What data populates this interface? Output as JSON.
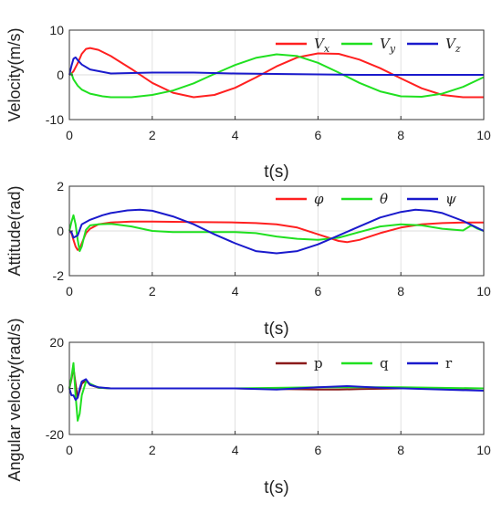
{
  "chart_data": [
    {
      "type": "line",
      "xlabel": "t(s)",
      "ylabel": "Velocity(m/s)",
      "xlim": [
        0,
        10
      ],
      "ylim": [
        -10,
        10
      ],
      "xticks": [
        0,
        2,
        4,
        6,
        8,
        10
      ],
      "yticks": [
        -10,
        0,
        10
      ],
      "grid": "x",
      "legend": "top-right",
      "series": [
        {
          "name": "Vx",
          "label_main": "V",
          "label_sub": "x",
          "color": "#ff2020",
          "x": [
            0,
            0.05,
            0.1,
            0.2,
            0.3,
            0.4,
            0.5,
            0.7,
            1.0,
            1.5,
            2.0,
            2.5,
            3.0,
            3.5,
            4.0,
            4.5,
            5.0,
            5.5,
            6.0,
            6.5,
            7.0,
            7.5,
            8.0,
            8.5,
            9.0,
            9.5,
            10.0
          ],
          "y": [
            0,
            0.3,
            0.8,
            2.6,
            4.7,
            5.8,
            6.0,
            5.6,
            4.2,
            1.3,
            -1.8,
            -4.0,
            -5.0,
            -4.5,
            -2.9,
            -0.6,
            1.9,
            3.9,
            4.8,
            4.7,
            3.4,
            1.5,
            -0.8,
            -3.0,
            -4.5,
            -5.0,
            -5.0
          ]
        },
        {
          "name": "Vy",
          "label_main": "V",
          "label_sub": "y",
          "color": "#20e020",
          "x": [
            0,
            0.05,
            0.1,
            0.2,
            0.3,
            0.5,
            0.8,
            1.0,
            1.5,
            2.0,
            2.5,
            3.0,
            3.5,
            4.0,
            4.5,
            5.0,
            5.5,
            6.0,
            6.5,
            7.0,
            7.5,
            8.0,
            8.5,
            9.0,
            9.5,
            10.0
          ],
          "y": [
            0,
            0.3,
            -1.0,
            -2.4,
            -3.3,
            -4.2,
            -4.8,
            -5.0,
            -5.0,
            -4.5,
            -3.5,
            -1.9,
            0.2,
            2.2,
            3.8,
            4.6,
            4.2,
            2.7,
            0.5,
            -1.8,
            -3.7,
            -4.8,
            -4.9,
            -4.2,
            -2.7,
            -0.5
          ]
        },
        {
          "name": "Vz",
          "label_main": "V",
          "label_sub": "z",
          "color": "#1a1acc",
          "x": [
            0,
            0.05,
            0.1,
            0.15,
            0.2,
            0.3,
            0.5,
            1.0,
            2.0,
            3.0,
            4.0,
            5.0,
            6.0,
            7.0,
            8.0,
            9.0,
            10.0
          ],
          "y": [
            0,
            2.0,
            3.6,
            3.9,
            3.3,
            2.3,
            1.2,
            0.3,
            0.5,
            0.5,
            0.3,
            0.2,
            0.1,
            0.0,
            0.0,
            0.0,
            0.0
          ]
        }
      ]
    },
    {
      "type": "line",
      "xlabel": "t(s)",
      "ylabel": "Attitude(rad)",
      "xlim": [
        0,
        10
      ],
      "ylim": [
        -2,
        2
      ],
      "xticks": [
        0,
        2,
        4,
        6,
        8,
        10
      ],
      "yticks": [
        -2,
        0,
        2
      ],
      "grid": "x",
      "legend": "top-right",
      "series": [
        {
          "name": "φ",
          "label_main": "φ",
          "label_sub": "",
          "color": "#ff2020",
          "x": [
            0,
            0.05,
            0.1,
            0.15,
            0.2,
            0.25,
            0.3,
            0.4,
            0.5,
            0.7,
            1.0,
            1.5,
            2.0,
            3.0,
            4.0,
            4.5,
            5.0,
            5.5,
            6.0,
            6.5,
            6.7,
            7.0,
            7.5,
            8.0,
            8.5,
            9.0,
            9.5,
            10.0
          ],
          "y": [
            0,
            -0.1,
            -0.4,
            -0.7,
            -0.85,
            -0.8,
            -0.55,
            -0.1,
            0.1,
            0.3,
            0.38,
            0.42,
            0.42,
            0.4,
            0.38,
            0.35,
            0.3,
            0.15,
            -0.15,
            -0.45,
            -0.5,
            -0.4,
            -0.1,
            0.15,
            0.3,
            0.35,
            0.38,
            0.38
          ]
        },
        {
          "name": "θ",
          "label_main": "θ",
          "label_sub": "",
          "color": "#20e020",
          "x": [
            0,
            0.05,
            0.1,
            0.15,
            0.2,
            0.25,
            0.3,
            0.35,
            0.4,
            0.5,
            0.7,
            1.0,
            1.5,
            2.0,
            2.5,
            3.0,
            3.5,
            4.0,
            4.5,
            5.0,
            5.5,
            6.0,
            6.5,
            7.0,
            7.5,
            8.0,
            8.5,
            9.0,
            9.5,
            9.7,
            9.85,
            10.0
          ],
          "y": [
            0,
            0.4,
            0.7,
            0.3,
            -0.4,
            -0.9,
            -0.7,
            -0.3,
            0.05,
            0.25,
            0.3,
            0.32,
            0.2,
            0.0,
            -0.05,
            -0.05,
            -0.05,
            -0.05,
            -0.1,
            -0.25,
            -0.35,
            -0.4,
            -0.3,
            -0.05,
            0.2,
            0.3,
            0.25,
            0.1,
            0.02,
            0.25,
            0.1,
            0.0
          ]
        },
        {
          "name": "ψ",
          "label_main": "ψ",
          "label_sub": "",
          "color": "#1a1acc",
          "x": [
            0,
            0.05,
            0.1,
            0.2,
            0.3,
            0.5,
            0.8,
            1.0,
            1.4,
            1.7,
            2.0,
            2.5,
            3.0,
            3.5,
            4.0,
            4.5,
            5.0,
            5.5,
            6.0,
            6.5,
            7.0,
            7.5,
            8.0,
            8.35,
            8.7,
            9.0,
            9.5,
            10.0
          ],
          "y": [
            0,
            -0.05,
            -0.3,
            -0.2,
            0.3,
            0.5,
            0.7,
            0.8,
            0.92,
            0.95,
            0.9,
            0.65,
            0.3,
            -0.15,
            -0.55,
            -0.9,
            -1.0,
            -0.9,
            -0.6,
            -0.2,
            0.2,
            0.6,
            0.85,
            0.95,
            0.9,
            0.8,
            0.45,
            0.0
          ]
        }
      ]
    },
    {
      "type": "line",
      "xlabel": "t(s)",
      "ylabel": "Angular velocity(rad/s)",
      "xlim": [
        0,
        10
      ],
      "ylim": [
        -20,
        20
      ],
      "xticks": [
        0,
        2,
        4,
        6,
        8,
        10
      ],
      "yticks": [
        -20,
        0,
        20
      ],
      "grid": "x",
      "legend": "top-right",
      "series": [
        {
          "name": "p",
          "label_main": "p",
          "label_sub": "",
          "color": "#8b1a1a",
          "x": [
            0,
            0.05,
            0.1,
            0.15,
            0.2,
            0.3,
            0.4,
            0.5,
            0.7,
            1.0,
            2.0,
            4.0,
            6.0,
            6.5,
            7.0,
            8.0,
            10.0
          ],
          "y": [
            0,
            4.0,
            9.0,
            2.0,
            -4.0,
            2.0,
            3.5,
            1.5,
            0.3,
            0.0,
            0.0,
            0.0,
            -0.5,
            -0.5,
            -0.3,
            0.0,
            0.0
          ]
        },
        {
          "name": "q",
          "label_main": "q",
          "label_sub": "",
          "color": "#20e020",
          "x": [
            0,
            0.05,
            0.1,
            0.15,
            0.2,
            0.25,
            0.3,
            0.4,
            0.5,
            0.7,
            1.0,
            2.0,
            4.0,
            6.0,
            8.0,
            10.0
          ],
          "y": [
            0,
            5.0,
            11.0,
            -3.0,
            -14.0,
            -11.0,
            -3.0,
            3.0,
            2.0,
            0.3,
            0.0,
            0.0,
            0.0,
            0.5,
            0.5,
            0.0
          ]
        },
        {
          "name": "r",
          "label_main": "r",
          "label_sub": "",
          "color": "#1a1acc",
          "x": [
            0,
            0.05,
            0.1,
            0.15,
            0.2,
            0.25,
            0.3,
            0.4,
            0.5,
            0.7,
            1.0,
            2.0,
            4.0,
            5.0,
            6.0,
            6.7,
            7.5,
            9.0,
            10.0
          ],
          "y": [
            0,
            -3.0,
            -3.0,
            -5.0,
            -4.0,
            0.0,
            3.0,
            4.0,
            1.5,
            0.5,
            0.0,
            0.0,
            0.0,
            -0.5,
            0.5,
            1.0,
            0.3,
            -0.5,
            -1.0
          ]
        }
      ]
    }
  ]
}
